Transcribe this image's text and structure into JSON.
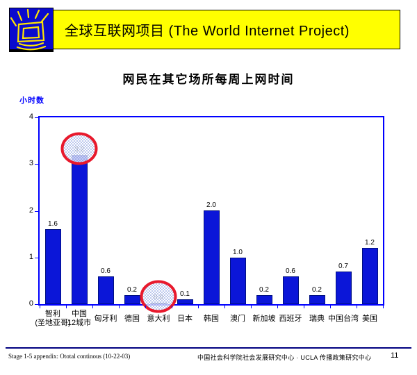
{
  "header": {
    "banner_title": "全球互联网项目 (The World Internet Project)",
    "logo_icon": "shining-computer-monitor",
    "banner_bg_color": "#ffff00",
    "logo_bg_color": "#0a0ace"
  },
  "slide_title": "网民在其它场所每周上网时间",
  "chart_data": {
    "type": "bar",
    "title": "网民在其它场所每周上网时间",
    "ylabel": "小时数",
    "xlabel": "",
    "ylim": [
      0,
      4
    ],
    "yticks": [
      0,
      1,
      2,
      3,
      4
    ],
    "grid": false,
    "legend": "none",
    "bar_color": "#0b16d8",
    "bar_border_color": "#001080",
    "axis_color": "#0000ff",
    "categories": [
      "智利\n(圣地亚哥)",
      "中国\n12城市",
      "匈牙利",
      "德国",
      "意大利",
      "日本",
      "韩国",
      "澳门",
      "新加坡",
      "西班牙",
      "瑞典",
      "中国台湾",
      "美国"
    ],
    "values": [
      1.6,
      3.2,
      0.6,
      0.2,
      0.0,
      0.1,
      2.0,
      1.0,
      0.2,
      0.6,
      0.2,
      0.7,
      1.2
    ],
    "value_labels": [
      "1.6",
      "3.2",
      "0.6",
      "0.2",
      "0.0",
      "0.1",
      "2.0",
      "1.0",
      "0.2",
      "0.6",
      "0.2",
      "0.7",
      "1.2"
    ],
    "annotations": [
      {
        "shape": "ellipse",
        "category_index": 1,
        "highlighted_value": "3.2",
        "stroke_color": "#e8192c",
        "fill_pattern": "blue-dots"
      },
      {
        "shape": "ellipse",
        "category_index": 4,
        "highlighted_value": "0.0",
        "stroke_color": "#e8192c",
        "fill_pattern": "blue-dots"
      }
    ]
  },
  "footer": {
    "left_note": "Stage 1-5 appendix: Ototal continous (10-22-03)",
    "credit": "中国社会科学院社会发展研究中心 · UCLA 传播政策研究中心",
    "page_number": "11"
  }
}
